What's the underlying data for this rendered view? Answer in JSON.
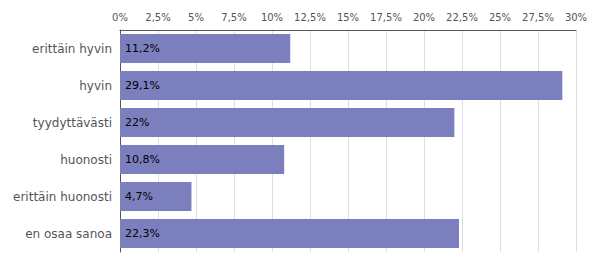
{
  "chart_data": {
    "type": "bar",
    "orientation": "horizontal",
    "categories": [
      "erittäin hyvin",
      "hyvin",
      "tyydyttävästi",
      "huonosti",
      "erittäin huonosti",
      "en osaa sanoa"
    ],
    "values": [
      11.2,
      29.1,
      22.0,
      10.8,
      4.7,
      22.3
    ],
    "value_labels": [
      "11,2%",
      "29,1%",
      "22%",
      "10,8%",
      "4,7%",
      "22,3%"
    ],
    "data_labels": true,
    "color": "#7b7fbe",
    "xlim": [
      0,
      30
    ],
    "xticks": [
      {
        "value": 0,
        "label": "0%"
      },
      {
        "value": 2.5,
        "label": "2,5%"
      },
      {
        "value": 5,
        "label": "5%"
      },
      {
        "value": 7.5,
        "label": "7,5%"
      },
      {
        "value": 10,
        "label": "10%"
      },
      {
        "value": 12.5,
        "label": "12,5%"
      },
      {
        "value": 15,
        "label": "15%"
      },
      {
        "value": 17.5,
        "label": "17,5%"
      },
      {
        "value": 20,
        "label": "20%"
      },
      {
        "value": 22.5,
        "label": "22,5%"
      },
      {
        "value": 25,
        "label": "25%"
      },
      {
        "value": 27.5,
        "label": "27,5%"
      },
      {
        "value": 30,
        "label": "30%"
      }
    ],
    "grid": true
  }
}
